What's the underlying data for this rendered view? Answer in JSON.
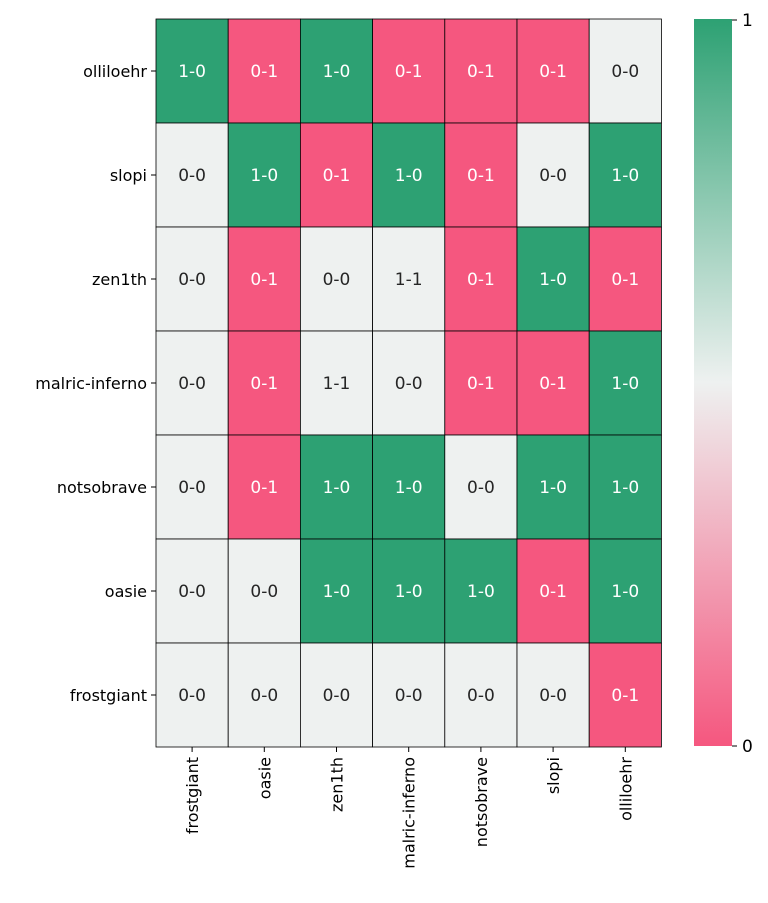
{
  "chart_data": {
    "type": "heatmap",
    "rows": [
      "olliloehr",
      "slopi",
      "zen1th",
      "malric-inferno",
      "notsobrave",
      "oasie",
      "frostgiant"
    ],
    "columns": [
      "frostgiant",
      "oasie",
      "zen1th",
      "malric-inferno",
      "notsobrave",
      "slopi",
      "olliloehr"
    ],
    "labels": [
      [
        "1-0",
        "0-1",
        "1-0",
        "0-1",
        "0-1",
        "0-1",
        "0-0"
      ],
      [
        "0-0",
        "1-0",
        "0-1",
        "1-0",
        "0-1",
        "0-0",
        "1-0"
      ],
      [
        "0-0",
        "0-1",
        "0-0",
        "1-1",
        "0-1",
        "1-0",
        "0-1"
      ],
      [
        "0-0",
        "0-1",
        "1-1",
        "0-0",
        "0-1",
        "0-1",
        "1-0"
      ],
      [
        "0-0",
        "0-1",
        "1-0",
        "1-0",
        "0-0",
        "1-0",
        "1-0"
      ],
      [
        "0-0",
        "0-0",
        "1-0",
        "1-0",
        "1-0",
        "0-1",
        "1-0"
      ],
      [
        "0-0",
        "0-0",
        "0-0",
        "0-0",
        "0-0",
        "0-0",
        "0-1"
      ]
    ],
    "values": [
      [
        1,
        0,
        1,
        0,
        0,
        0,
        0.5
      ],
      [
        0.5,
        1,
        0,
        1,
        0,
        0.5,
        1
      ],
      [
        0.5,
        0,
        0.5,
        0.5,
        0,
        1,
        0
      ],
      [
        0.5,
        0,
        0.5,
        0.5,
        0,
        0,
        1
      ],
      [
        0.5,
        0,
        1,
        1,
        0.5,
        1,
        1
      ],
      [
        0.5,
        0.5,
        1,
        1,
        1,
        0,
        1
      ],
      [
        0.5,
        0.5,
        0.5,
        0.5,
        0.5,
        0.5,
        0
      ]
    ],
    "colorbar": {
      "min_label": "0",
      "max_label": "1",
      "range": [
        0,
        1
      ]
    },
    "colors": {
      "low": "#f5577f",
      "mid": "#eef1f0",
      "high": "#2da173"
    }
  }
}
